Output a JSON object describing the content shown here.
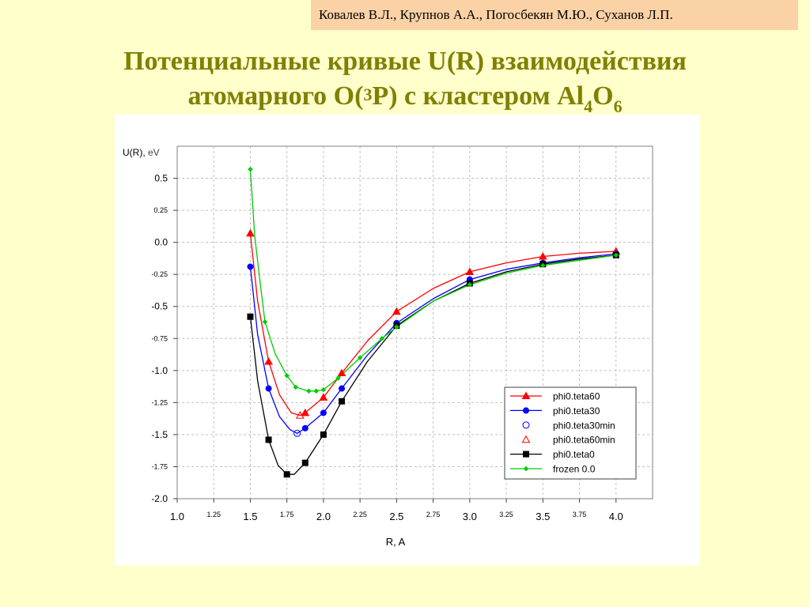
{
  "header": {
    "authors": "Ковалев В.Л., Крупнов А.А., Погосбекян М.Ю., Суханов Л.П."
  },
  "title": {
    "line1": "Потенциальные кривые U(R) взаимодействия",
    "line2_pre": "атомарного O(",
    "line2_sup": "3",
    "line2_mid": "P) с кластером Al",
    "line2_sub1": "4",
    "line2_o": "O",
    "line2_sub2": "6"
  },
  "colors": {
    "page_background": "#ffffcc",
    "author_box": "#fbd2a6",
    "title": "#808000",
    "plot_background": "#ffffff",
    "grid": "#c0c0c0"
  },
  "chart_data": {
    "type": "line",
    "title": "",
    "xlabel": "R, A",
    "ylabel_main": "U(R),",
    "ylabel_unit": " eV",
    "xlim": [
      1.0,
      4.25
    ],
    "ylim": [
      -2.0,
      0.75
    ],
    "xticks": [
      {
        "v": 1.0,
        "label": "1.0",
        "major": true
      },
      {
        "v": 1.25,
        "label": "1.25",
        "major": false
      },
      {
        "v": 1.5,
        "label": "1.5",
        "major": true
      },
      {
        "v": 1.75,
        "label": "1.75",
        "major": false
      },
      {
        "v": 2.0,
        "label": "2.0",
        "major": true
      },
      {
        "v": 2.25,
        "label": "2.25",
        "major": false
      },
      {
        "v": 2.5,
        "label": "2.5",
        "major": true
      },
      {
        "v": 2.75,
        "label": "2.75",
        "major": false
      },
      {
        "v": 3.0,
        "label": "3.0",
        "major": true
      },
      {
        "v": 3.25,
        "label": "3.25",
        "major": false
      },
      {
        "v": 3.5,
        "label": "3.5",
        "major": true
      },
      {
        "v": 3.75,
        "label": "3.75",
        "major": false
      },
      {
        "v": 4.0,
        "label": "4.0",
        "major": true
      }
    ],
    "yticks": [
      {
        "v": 0.5,
        "label": "0.5",
        "major": true
      },
      {
        "v": 0.25,
        "label": "0.25",
        "major": false
      },
      {
        "v": 0.0,
        "label": "0.0",
        "major": true
      },
      {
        "v": -0.25,
        "label": "-0.25",
        "major": false
      },
      {
        "v": -0.5,
        "label": "-0.5",
        "major": true
      },
      {
        "v": -0.75,
        "label": "-0.75",
        "major": false
      },
      {
        "v": -1.0,
        "label": "-1.0",
        "major": true
      },
      {
        "v": -1.25,
        "label": "-1.25",
        "major": false
      },
      {
        "v": -1.5,
        "label": "-1.5",
        "major": true
      },
      {
        "v": -1.75,
        "label": "-1.75",
        "major": false
      },
      {
        "v": -2.0,
        "label": "-2.0",
        "major": true
      }
    ],
    "grid": true,
    "legend_position": "bottom-right",
    "series": [
      {
        "name": "phi0.teta60",
        "color": "#ff0000",
        "marker": "triangle-filled",
        "points": [
          [
            1.5,
            0.07
          ],
          [
            1.625,
            -0.93
          ],
          [
            1.875,
            -1.33
          ],
          [
            2.0,
            -1.21
          ],
          [
            2.125,
            -1.02
          ],
          [
            2.5,
            -0.54
          ],
          [
            3.0,
            -0.23
          ],
          [
            3.5,
            -0.11
          ],
          [
            4.0,
            -0.07
          ]
        ],
        "curve": [
          [
            1.5,
            0.07
          ],
          [
            1.55,
            -0.46
          ],
          [
            1.625,
            -0.93
          ],
          [
            1.7,
            -1.19
          ],
          [
            1.78,
            -1.33
          ],
          [
            1.84,
            -1.35
          ],
          [
            1.875,
            -1.33
          ],
          [
            2.0,
            -1.21
          ],
          [
            2.125,
            -1.02
          ],
          [
            2.3,
            -0.77
          ],
          [
            2.5,
            -0.54
          ],
          [
            2.75,
            -0.36
          ],
          [
            3.0,
            -0.23
          ],
          [
            3.25,
            -0.16
          ],
          [
            3.5,
            -0.11
          ],
          [
            3.75,
            -0.085
          ],
          [
            4.0,
            -0.07
          ]
        ]
      },
      {
        "name": "phi0.teta30",
        "color": "#0000ff",
        "marker": "circle-filled",
        "points": [
          [
            1.5,
            -0.19
          ],
          [
            1.625,
            -1.14
          ],
          [
            1.875,
            -1.45
          ],
          [
            2.0,
            -1.33
          ],
          [
            2.125,
            -1.14
          ],
          [
            2.5,
            -0.63
          ],
          [
            3.0,
            -0.29
          ],
          [
            3.5,
            -0.16
          ],
          [
            4.0,
            -0.09
          ]
        ],
        "curve": [
          [
            1.5,
            -0.19
          ],
          [
            1.55,
            -0.72
          ],
          [
            1.625,
            -1.14
          ],
          [
            1.7,
            -1.36
          ],
          [
            1.77,
            -1.46
          ],
          [
            1.82,
            -1.49
          ],
          [
            1.875,
            -1.45
          ],
          [
            2.0,
            -1.33
          ],
          [
            2.125,
            -1.14
          ],
          [
            2.3,
            -0.88
          ],
          [
            2.5,
            -0.63
          ],
          [
            2.75,
            -0.44
          ],
          [
            3.0,
            -0.29
          ],
          [
            3.25,
            -0.21
          ],
          [
            3.5,
            -0.16
          ],
          [
            3.75,
            -0.12
          ],
          [
            4.0,
            -0.09
          ]
        ]
      },
      {
        "name": "phi0.teta30min",
        "color": "#0000ff",
        "marker": "circle-open",
        "points": [
          [
            1.82,
            -1.49
          ]
        ]
      },
      {
        "name": "phi0.teta60min",
        "color": "#ff0000",
        "marker": "triangle-open",
        "points": [
          [
            1.84,
            -1.35
          ]
        ]
      },
      {
        "name": "phi0.teta0",
        "color": "#000000",
        "marker": "square-filled",
        "points": [
          [
            1.5,
            -0.58
          ],
          [
            1.625,
            -1.54
          ],
          [
            1.75,
            -1.81
          ],
          [
            1.875,
            -1.72
          ],
          [
            2.0,
            -1.5
          ],
          [
            2.125,
            -1.24
          ],
          [
            2.5,
            -0.65
          ],
          [
            3.0,
            -0.32
          ],
          [
            3.5,
            -0.17
          ],
          [
            4.0,
            -0.1
          ]
        ],
        "curve": [
          [
            1.5,
            -0.58
          ],
          [
            1.55,
            -1.08
          ],
          [
            1.625,
            -1.54
          ],
          [
            1.69,
            -1.74
          ],
          [
            1.75,
            -1.81
          ],
          [
            1.8,
            -1.81
          ],
          [
            1.875,
            -1.72
          ],
          [
            2.0,
            -1.5
          ],
          [
            2.125,
            -1.24
          ],
          [
            2.3,
            -0.93
          ],
          [
            2.5,
            -0.65
          ],
          [
            2.75,
            -0.46
          ],
          [
            3.0,
            -0.32
          ],
          [
            3.25,
            -0.23
          ],
          [
            3.5,
            -0.17
          ],
          [
            3.75,
            -0.13
          ],
          [
            4.0,
            -0.1
          ]
        ]
      },
      {
        "name": "frozen 0.0",
        "color": "#00cc00",
        "marker": "diamond-filled",
        "points": [
          [
            1.5,
            0.57
          ],
          [
            1.6,
            -0.62
          ],
          [
            1.75,
            -1.04
          ],
          [
            1.81,
            -1.13
          ],
          [
            1.9,
            -1.16
          ],
          [
            1.95,
            -1.16
          ],
          [
            2.0,
            -1.15
          ],
          [
            2.1,
            -1.06
          ],
          [
            2.25,
            -0.9
          ],
          [
            2.4,
            -0.75
          ],
          [
            2.5,
            -0.66
          ],
          [
            3.0,
            -0.33
          ],
          [
            3.5,
            -0.18
          ],
          [
            4.0,
            -0.1
          ]
        ],
        "curve": [
          [
            1.5,
            0.57
          ],
          [
            1.53,
            0.05
          ],
          [
            1.57,
            -0.34
          ],
          [
            1.6,
            -0.62
          ],
          [
            1.67,
            -0.87
          ],
          [
            1.75,
            -1.04
          ],
          [
            1.81,
            -1.13
          ],
          [
            1.9,
            -1.16
          ],
          [
            1.95,
            -1.16
          ],
          [
            2.0,
            -1.15
          ],
          [
            2.1,
            -1.06
          ],
          [
            2.25,
            -0.9
          ],
          [
            2.4,
            -0.75
          ],
          [
            2.5,
            -0.66
          ],
          [
            2.75,
            -0.46
          ],
          [
            3.0,
            -0.33
          ],
          [
            3.25,
            -0.24
          ],
          [
            3.5,
            -0.18
          ],
          [
            3.75,
            -0.14
          ],
          [
            4.0,
            -0.1
          ]
        ]
      }
    ]
  }
}
